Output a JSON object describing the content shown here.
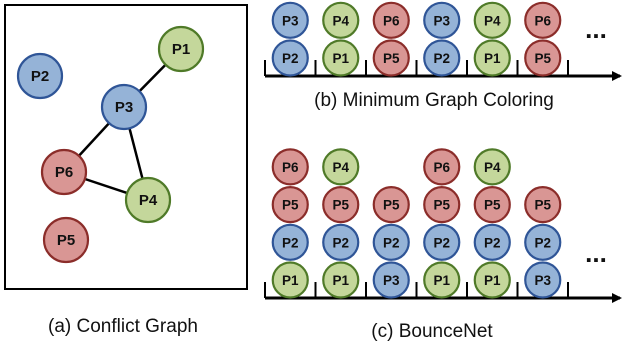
{
  "colors": {
    "blue": {
      "fill": "#95b3d7",
      "stroke": "#2f5597"
    },
    "green": {
      "fill": "#c4d79b",
      "stroke": "#4f7a28"
    },
    "red": {
      "fill": "#d99694",
      "stroke": "#8b2d2a"
    }
  },
  "conflict_graph": {
    "caption": "(a) Conflict Graph",
    "nodes": [
      {
        "id": "P1",
        "label": "P1",
        "color": "green"
      },
      {
        "id": "P2",
        "label": "P2",
        "color": "blue"
      },
      {
        "id": "P3",
        "label": "P3",
        "color": "blue"
      },
      {
        "id": "P4",
        "label": "P4",
        "color": "green"
      },
      {
        "id": "P5",
        "label": "P5",
        "color": "red"
      },
      {
        "id": "P6",
        "label": "P6",
        "color": "red"
      }
    ],
    "edges": [
      [
        "P1",
        "P3"
      ],
      [
        "P3",
        "P6"
      ],
      [
        "P3",
        "P4"
      ],
      [
        "P6",
        "P4"
      ]
    ]
  },
  "min_graph_coloring": {
    "caption": "(b) Minimum Graph Coloring",
    "continuation": "...",
    "slots": [
      {
        "bottom_to_top": [
          {
            "label": "P2",
            "color": "blue"
          },
          {
            "label": "P3",
            "color": "blue"
          }
        ]
      },
      {
        "bottom_to_top": [
          {
            "label": "P1",
            "color": "green"
          },
          {
            "label": "P4",
            "color": "green"
          }
        ]
      },
      {
        "bottom_to_top": [
          {
            "label": "P5",
            "color": "red"
          },
          {
            "label": "P6",
            "color": "red"
          }
        ]
      },
      {
        "bottom_to_top": [
          {
            "label": "P2",
            "color": "blue"
          },
          {
            "label": "P3",
            "color": "blue"
          }
        ]
      },
      {
        "bottom_to_top": [
          {
            "label": "P1",
            "color": "green"
          },
          {
            "label": "P4",
            "color": "green"
          }
        ]
      },
      {
        "bottom_to_top": [
          {
            "label": "P5",
            "color": "red"
          },
          {
            "label": "P6",
            "color": "red"
          }
        ]
      }
    ]
  },
  "bouncenet": {
    "caption": "(c) BounceNet",
    "continuation": "...",
    "slots": [
      {
        "bottom_to_top": [
          {
            "label": "P1",
            "color": "green"
          },
          {
            "label": "P2",
            "color": "blue"
          },
          {
            "label": "P5",
            "color": "red"
          },
          {
            "label": "P6",
            "color": "red"
          }
        ]
      },
      {
        "bottom_to_top": [
          {
            "label": "P1",
            "color": "green"
          },
          {
            "label": "P2",
            "color": "blue"
          },
          {
            "label": "P5",
            "color": "red"
          },
          {
            "label": "P4",
            "color": "green"
          }
        ]
      },
      {
        "bottom_to_top": [
          {
            "label": "P3",
            "color": "blue"
          },
          {
            "label": "P2",
            "color": "blue"
          },
          {
            "label": "P5",
            "color": "red"
          }
        ]
      },
      {
        "bottom_to_top": [
          {
            "label": "P1",
            "color": "green"
          },
          {
            "label": "P2",
            "color": "blue"
          },
          {
            "label": "P5",
            "color": "red"
          },
          {
            "label": "P6",
            "color": "red"
          }
        ]
      },
      {
        "bottom_to_top": [
          {
            "label": "P1",
            "color": "green"
          },
          {
            "label": "P2",
            "color": "blue"
          },
          {
            "label": "P5",
            "color": "red"
          },
          {
            "label": "P4",
            "color": "green"
          }
        ]
      },
      {
        "bottom_to_top": [
          {
            "label": "P3",
            "color": "blue"
          },
          {
            "label": "P2",
            "color": "blue"
          },
          {
            "label": "P5",
            "color": "red"
          }
        ]
      }
    ]
  }
}
